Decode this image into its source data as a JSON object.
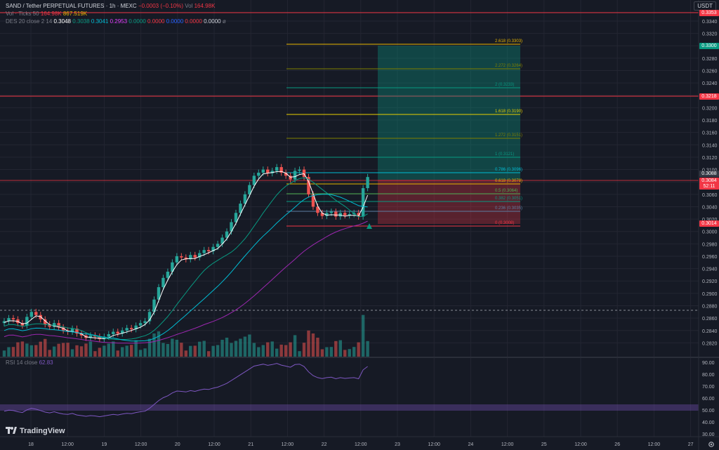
{
  "header": {
    "symbol": "SAND / Tether PERPETUAL FUTURES · 1h · MEXC",
    "change": "−0.0003 (−0.10%)",
    "vol_label": "Vol",
    "vol_value": "164.98K",
    "currency": "USDT"
  },
  "indicators": {
    "vol_ticks": {
      "name": "Vol · Ticks 50",
      "v1": "164.98K",
      "v2": "867.519K"
    },
    "des": {
      "name": "DES 20 close 2 14",
      "values": [
        "0.3048",
        "0.3038",
        "0.3041",
        "0.2953",
        "0.0000",
        "0.0000",
        "0.0000",
        "0.0000",
        "0.0000"
      ],
      "suffix": "ø"
    },
    "rsi": {
      "name": "RSI 14 close",
      "value": "62.83"
    }
  },
  "price_axis": {
    "labels": [
      "0.3340",
      "0.3320",
      "0.3300",
      "0.3280",
      "0.3260",
      "0.3240",
      "0.3220",
      "0.3200",
      "0.3180",
      "0.3160",
      "0.3140",
      "0.3120",
      "0.3100",
      "0.3080",
      "0.3060",
      "0.3040",
      "0.3020",
      "0.3000",
      "0.2980",
      "0.2960",
      "0.2940",
      "0.2920",
      "0.2900",
      "0.2880",
      "0.2860",
      "0.2840",
      "0.2820"
    ],
    "tags": [
      {
        "text": "0.3353",
        "color": "#f23645"
      },
      {
        "text": "0.3300",
        "color": "#089981"
      },
      {
        "text": "0.3218",
        "color": "#f23645"
      },
      {
        "text": "0.3088",
        "color": "#363a45"
      },
      {
        "text": "0.3084",
        "color": "#f23645"
      },
      {
        "text": "52:11",
        "color": "#f23645"
      },
      {
        "text": "0.3014",
        "color": "#f23645"
      }
    ]
  },
  "rsi_axis": {
    "labels": [
      "90.00",
      "80.00",
      "70.00",
      "60.00",
      "50.00",
      "40.00",
      "30.00"
    ]
  },
  "time_axis": {
    "labels": [
      "18",
      "12:00",
      "19",
      "12:00",
      "20",
      "12:00",
      "21",
      "12:00",
      "22",
      "12:00",
      "23",
      "12:00",
      "24",
      "12:00",
      "25",
      "12:00",
      "26",
      "12:00",
      "27"
    ]
  },
  "fib": [
    {
      "label": "2.618 (0.3303)",
      "color": "#e8b600"
    },
    {
      "label": "2.272 (0.3264)",
      "color": "#808000"
    },
    {
      "label": "2 (0.3233)",
      "color": "#089981"
    },
    {
      "label": "1.618 (0.3190)",
      "color": "#e8d000"
    },
    {
      "label": "1.272 (0.3151)",
      "color": "#808000"
    },
    {
      "label": "1 (0.3121)",
      "color": "#089981"
    },
    {
      "label": "0.786 (0.3096)",
      "color": "#00bcd4"
    },
    {
      "label": "0.618 (0.3078)",
      "color": "#e8b600"
    },
    {
      "label": "0.5 (0.3064)",
      "color": "#4caf50"
    },
    {
      "label": "0.382 (0.3051)",
      "color": "#089981"
    },
    {
      "label": "0.236 (0.3035)",
      "color": "#5d7fa3"
    },
    {
      "label": "0 (0.3008)",
      "color": "#f23645"
    }
  ],
  "logo": {
    "text": "TradingView"
  },
  "colors": {
    "up": "#26a69a",
    "down": "#ef5350",
    "bg": "#161a25",
    "grid": "#232632"
  },
  "chart_data": {
    "type": "candlestick",
    "series_close": [
      0.2855,
      0.286,
      0.2858,
      0.2852,
      0.2848,
      0.2862,
      0.287,
      0.2865,
      0.2858,
      0.285,
      0.2846,
      0.2852,
      0.2845,
      0.284,
      0.2838,
      0.2843,
      0.2835,
      0.2832,
      0.2828,
      0.2832,
      0.283,
      0.2826,
      0.283,
      0.2834,
      0.2838,
      0.2835,
      0.284,
      0.2844,
      0.2842,
      0.2848,
      0.2852,
      0.2855,
      0.287,
      0.289,
      0.291,
      0.2925,
      0.2935,
      0.295,
      0.296,
      0.2958,
      0.2955,
      0.2962,
      0.2958,
      0.2965,
      0.297,
      0.2968,
      0.2975,
      0.298,
      0.299,
      0.3,
      0.3015,
      0.303,
      0.3045,
      0.306,
      0.3075,
      0.309,
      0.3095,
      0.31,
      0.3094,
      0.3098,
      0.3104,
      0.3095,
      0.309,
      0.3084,
      0.3098,
      0.31,
      0.3088,
      0.306,
      0.304,
      0.303,
      0.3025,
      0.303,
      0.3032,
      0.3024,
      0.303,
      0.3026,
      0.3028,
      0.303,
      0.3024,
      0.307,
      0.3088
    ]
  }
}
